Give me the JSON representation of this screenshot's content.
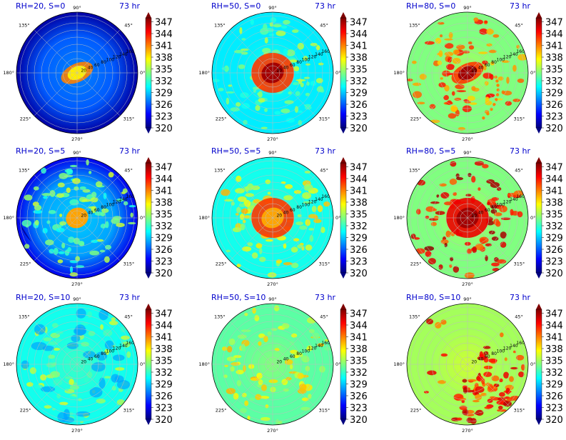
{
  "figure": {
    "colorbar_ticks": [
      "347",
      "344",
      "341",
      "338",
      "335",
      "332",
      "329",
      "326",
      "323",
      "320"
    ],
    "colormap": "jet",
    "colormap_stops": [
      "#00007f",
      "#0000ff",
      "#007fff",
      "#00ffff",
      "#7fff7f",
      "#ffff00",
      "#ff7f00",
      "#ff0000",
      "#7f0000"
    ],
    "title_color": "#0000cc"
  },
  "panels": [
    {
      "title": "RH=20, S=0",
      "time": "73 hr",
      "angle_labels": [
        "90°",
        "45°",
        "0°",
        "315°",
        "270°",
        "225°",
        "180°",
        "135°"
      ],
      "radial_labels": [
        "20",
        "40",
        "60",
        "80",
        "100",
        "120",
        "140",
        "160"
      ]
    },
    {
      "title": "RH=50, S=0",
      "time": "73 hr",
      "angle_labels": [
        "90°",
        "45°",
        "0°",
        "315°",
        "270°",
        "225°",
        "180°",
        "135°"
      ],
      "radial_labels": [
        "20",
        "40",
        "60",
        "80",
        "100",
        "120",
        "140",
        "160"
      ]
    },
    {
      "title": "RH=80, S=0",
      "time": "73 hr",
      "angle_labels": [
        "90°",
        "45°",
        "0°",
        "315°",
        "270°",
        "225°",
        "180°",
        "135°"
      ],
      "radial_labels": [
        "20",
        "40",
        "60",
        "80",
        "100",
        "120",
        "140",
        "160"
      ]
    },
    {
      "title": "RH=20, S=5",
      "time": "73 hr",
      "angle_labels": [
        "90°",
        "45°",
        "0°",
        "315°",
        "270°",
        "225°",
        "180°",
        "135°"
      ],
      "radial_labels": [
        "20",
        "40",
        "60",
        "80",
        "100",
        "120",
        "140",
        "160"
      ]
    },
    {
      "title": "RH=50, S=5",
      "time": "73 hr",
      "angle_labels": [
        "90°",
        "45°",
        "0°",
        "315°",
        "270°",
        "225°",
        "180°",
        "135°"
      ],
      "radial_labels": [
        "20",
        "40",
        "60",
        "80",
        "100",
        "120",
        "140",
        "160"
      ]
    },
    {
      "title": "RH=80, S=5",
      "time": "73 hr",
      "angle_labels": [
        "90°",
        "45°",
        "0°",
        "315°",
        "270°",
        "225°",
        "180°",
        "135°"
      ],
      "radial_labels": [
        "20",
        "40",
        "60",
        "80",
        "100",
        "120",
        "140",
        "160"
      ]
    },
    {
      "title": "RH=20, S=10",
      "time": "73 hr",
      "angle_labels": [
        "90°",
        "45°",
        "0°",
        "315°",
        "270°",
        "225°",
        "180°",
        "135°"
      ],
      "radial_labels": [
        "20",
        "40",
        "60",
        "80",
        "100",
        "120",
        "140",
        "160"
      ]
    },
    {
      "title": "RH=50, S=10",
      "time": "73 hr",
      "angle_labels": [
        "90°",
        "45°",
        "0°",
        "315°",
        "270°",
        "225°",
        "180°",
        "135°"
      ],
      "radial_labels": [
        "20",
        "40",
        "60",
        "80",
        "100",
        "120",
        "140",
        "160"
      ]
    },
    {
      "title": "RH=80, S=10",
      "time": "73 hr",
      "angle_labels": [
        "90°",
        "45°",
        "0°",
        "315°",
        "270°",
        "225°",
        "180°",
        "135°"
      ],
      "radial_labels": [
        "20",
        "40",
        "60",
        "80",
        "100",
        "120",
        "140",
        "160"
      ]
    }
  ],
  "chart_data": [
    {
      "type": "heatmap",
      "projection": "polar",
      "title": "RH=20, S=0",
      "annotation": "73 hr",
      "theta_ticks_deg": [
        0,
        45,
        90,
        135,
        180,
        225,
        270,
        315
      ],
      "r_ticks": [
        20,
        40,
        60,
        80,
        100,
        120,
        140,
        160
      ],
      "colorbar_range": [
        320,
        348
      ],
      "colorbar_ticks": [
        320,
        323,
        326,
        329,
        332,
        335,
        338,
        341,
        344,
        347
      ],
      "background_value": 326,
      "features": [
        {
          "shape": "core",
          "value": 338
        },
        {
          "shape": "eyewall-ellipse",
          "value": 341
        },
        {
          "shape": "outer-ring",
          "value": 321
        }
      ]
    },
    {
      "type": "heatmap",
      "projection": "polar",
      "title": "RH=50, S=0",
      "annotation": "73 hr",
      "theta_ticks_deg": [
        0,
        45,
        90,
        135,
        180,
        225,
        270,
        315
      ],
      "r_ticks": [
        20,
        40,
        60,
        80,
        100,
        120,
        140,
        160
      ],
      "colorbar_range": [
        320,
        348
      ],
      "colorbar_ticks": [
        320,
        323,
        326,
        329,
        332,
        335,
        338,
        341,
        344,
        347
      ],
      "background_value": 330,
      "features": [
        {
          "shape": "core",
          "value": 347
        },
        {
          "shape": "eyewall-ring",
          "value": 343
        },
        {
          "shape": "rainbands",
          "value": 333
        }
      ]
    },
    {
      "type": "heatmap",
      "projection": "polar",
      "title": "RH=80, S=0",
      "annotation": "73 hr",
      "theta_ticks_deg": [
        0,
        45,
        90,
        135,
        180,
        225,
        270,
        315
      ],
      "r_ticks": [
        20,
        40,
        60,
        80,
        100,
        120,
        140,
        160
      ],
      "colorbar_range": [
        320,
        348
      ],
      "colorbar_ticks": [
        320,
        323,
        326,
        329,
        332,
        335,
        338,
        341,
        344,
        347
      ],
      "background_value": 334,
      "features": [
        {
          "shape": "core",
          "value": 347
        },
        {
          "shape": "eyewall-ellipse",
          "value": 343
        },
        {
          "shape": "rainband-arc",
          "value": 341
        }
      ]
    },
    {
      "type": "heatmap",
      "projection": "polar",
      "title": "RH=20, S=5",
      "annotation": "73 hr",
      "theta_ticks_deg": [
        0,
        45,
        90,
        135,
        180,
        225,
        270,
        315
      ],
      "r_ticks": [
        20,
        40,
        60,
        80,
        100,
        120,
        140,
        160
      ],
      "colorbar_range": [
        320,
        348
      ],
      "colorbar_ticks": [
        320,
        323,
        326,
        329,
        332,
        335,
        338,
        341,
        344,
        347
      ],
      "background_value": 328,
      "features": [
        {
          "shape": "core",
          "value": 340
        },
        {
          "shape": "spiral-bands",
          "value": 333
        },
        {
          "shape": "outer-crescent",
          "value": 321
        }
      ]
    },
    {
      "type": "heatmap",
      "projection": "polar",
      "title": "RH=50, S=5",
      "annotation": "73 hr",
      "theta_ticks_deg": [
        0,
        45,
        90,
        135,
        180,
        225,
        270,
        315
      ],
      "r_ticks": [
        20,
        40,
        60,
        80,
        100,
        120,
        140,
        160
      ],
      "colorbar_range": [
        320,
        348
      ],
      "colorbar_ticks": [
        320,
        323,
        326,
        329,
        332,
        335,
        338,
        341,
        344,
        347
      ],
      "background_value": 331,
      "features": [
        {
          "shape": "core",
          "value": 340
        },
        {
          "shape": "eyewall-ring",
          "value": 343
        },
        {
          "shape": "rainbands",
          "value": 336
        }
      ]
    },
    {
      "type": "heatmap",
      "projection": "polar",
      "title": "RH=80, S=5",
      "annotation": "73 hr",
      "theta_ticks_deg": [
        0,
        45,
        90,
        135,
        180,
        225,
        270,
        315
      ],
      "r_ticks": [
        20,
        40,
        60,
        80,
        100,
        120,
        140,
        160
      ],
      "colorbar_range": [
        320,
        348
      ],
      "colorbar_ticks": [
        320,
        323,
        326,
        329,
        332,
        335,
        338,
        341,
        344,
        347
      ],
      "background_value": 334,
      "features": [
        {
          "shape": "core",
          "value": 347
        },
        {
          "shape": "eyewall-ring",
          "value": 345
        },
        {
          "shape": "spiral-bands",
          "value": 344
        }
      ]
    },
    {
      "type": "heatmap",
      "projection": "polar",
      "title": "RH=20, S=10",
      "annotation": "73 hr",
      "theta_ticks_deg": [
        0,
        45,
        90,
        135,
        180,
        225,
        270,
        315
      ],
      "r_ticks": [
        20,
        40,
        60,
        80,
        100,
        120,
        140,
        160
      ],
      "colorbar_range": [
        320,
        348
      ],
      "colorbar_ticks": [
        320,
        323,
        326,
        329,
        332,
        335,
        338,
        341,
        344,
        347
      ],
      "background_value": 331,
      "features": [
        {
          "shape": "scattered-cells",
          "value": 333
        },
        {
          "shape": "dry-patches",
          "value": 328
        }
      ]
    },
    {
      "type": "heatmap",
      "projection": "polar",
      "title": "RH=50, S=10",
      "annotation": "73 hr",
      "theta_ticks_deg": [
        0,
        45,
        90,
        135,
        180,
        225,
        270,
        315
      ],
      "r_ticks": [
        20,
        40,
        60,
        80,
        100,
        120,
        140,
        160
      ],
      "colorbar_range": [
        320,
        348
      ],
      "colorbar_ticks": [
        320,
        323,
        326,
        329,
        332,
        335,
        338,
        341,
        344,
        347
      ],
      "background_value": 333,
      "features": [
        {
          "shape": "scattered-cells",
          "value": 336
        },
        {
          "shape": "east-convection",
          "value": 340
        }
      ]
    },
    {
      "type": "heatmap",
      "projection": "polar",
      "title": "RH=80, S=10",
      "annotation": "73 hr",
      "theta_ticks_deg": [
        0,
        45,
        90,
        135,
        180,
        225,
        270,
        315
      ],
      "r_ticks": [
        20,
        40,
        60,
        80,
        100,
        120,
        140,
        160
      ],
      "colorbar_range": [
        320,
        348
      ],
      "colorbar_ticks": [
        320,
        323,
        326,
        329,
        332,
        335,
        338,
        341,
        344,
        347
      ],
      "background_value": 335,
      "features": [
        {
          "shape": "south-east-convection",
          "value": 343
        },
        {
          "shape": "scattered-cells",
          "value": 338
        }
      ]
    }
  ]
}
